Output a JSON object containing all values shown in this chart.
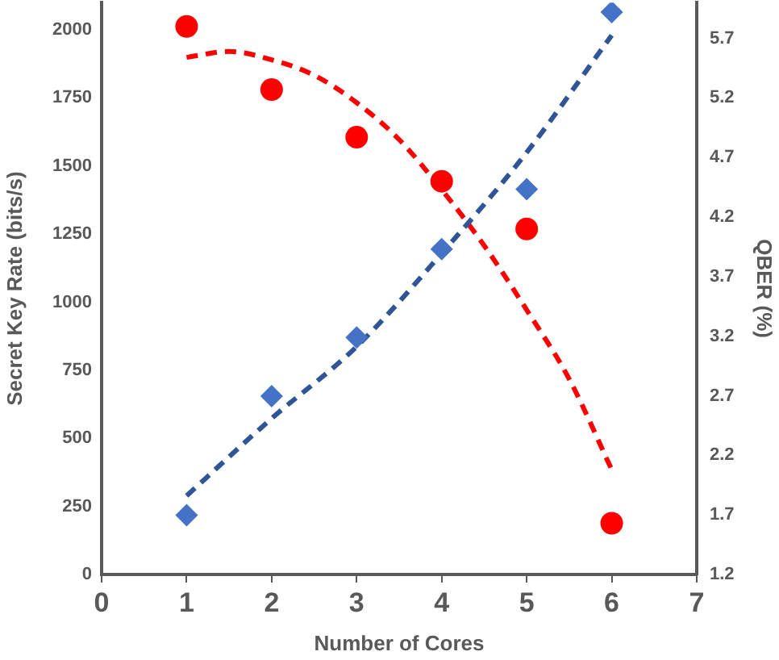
{
  "chart_data": {
    "type": "scatter",
    "xlabel": "Number of Cores",
    "ylabel": "Secret Key Rate (bits/s)",
    "y2label": "QBER (%)",
    "xlim": [
      0,
      7
    ],
    "xticks": [
      0,
      1,
      2,
      3,
      4,
      5,
      6,
      7
    ],
    "ylim": [
      0,
      2100
    ],
    "yticks": [
      0,
      250,
      500,
      750,
      1000,
      1250,
      1500,
      1750,
      2000
    ],
    "y2lim": [
      1.2,
      6.0
    ],
    "y2ticks": [
      1.2,
      1.7,
      2.2,
      2.7,
      3.2,
      3.7,
      4.2,
      4.7,
      5.2,
      5.7
    ],
    "grid": false,
    "legend": false,
    "series": [
      {
        "color": "#4472c4",
        "marker": "diamond",
        "x": [
          1,
          2,
          3,
          4,
          5,
          6
        ],
        "values": [
          218,
          655,
          870,
          1195,
          1415,
          2065
        ]
      },
      {
        "color": "#ff0000",
        "marker": "circle",
        "axis": "y2",
        "x": [
          1,
          2,
          3,
          4,
          5,
          6
        ],
        "values": [
          5.8,
          5.27,
          4.87,
          4.5,
          4.1,
          1.63
        ]
      },
      {
        "type": "line",
        "color": "#2f5597",
        "marker": "none",
        "line_style": "dashed",
        "x": [
          1,
          2,
          3,
          4,
          5,
          6
        ],
        "values": [
          289,
          573,
          837,
          1179,
          1550,
          1980
        ]
      },
      {
        "type": "line",
        "color": "#ff0000",
        "marker": "none",
        "line_style": "dashed",
        "axis": "y2",
        "x": [
          1,
          1.5,
          2,
          2.5,
          3,
          3.5,
          4,
          4.5,
          5,
          5.5,
          6
        ],
        "values": [
          5.54,
          5.59,
          5.52,
          5.39,
          5.16,
          4.85,
          4.43,
          3.96,
          3.42,
          2.84,
          2.08
        ]
      }
    ]
  }
}
